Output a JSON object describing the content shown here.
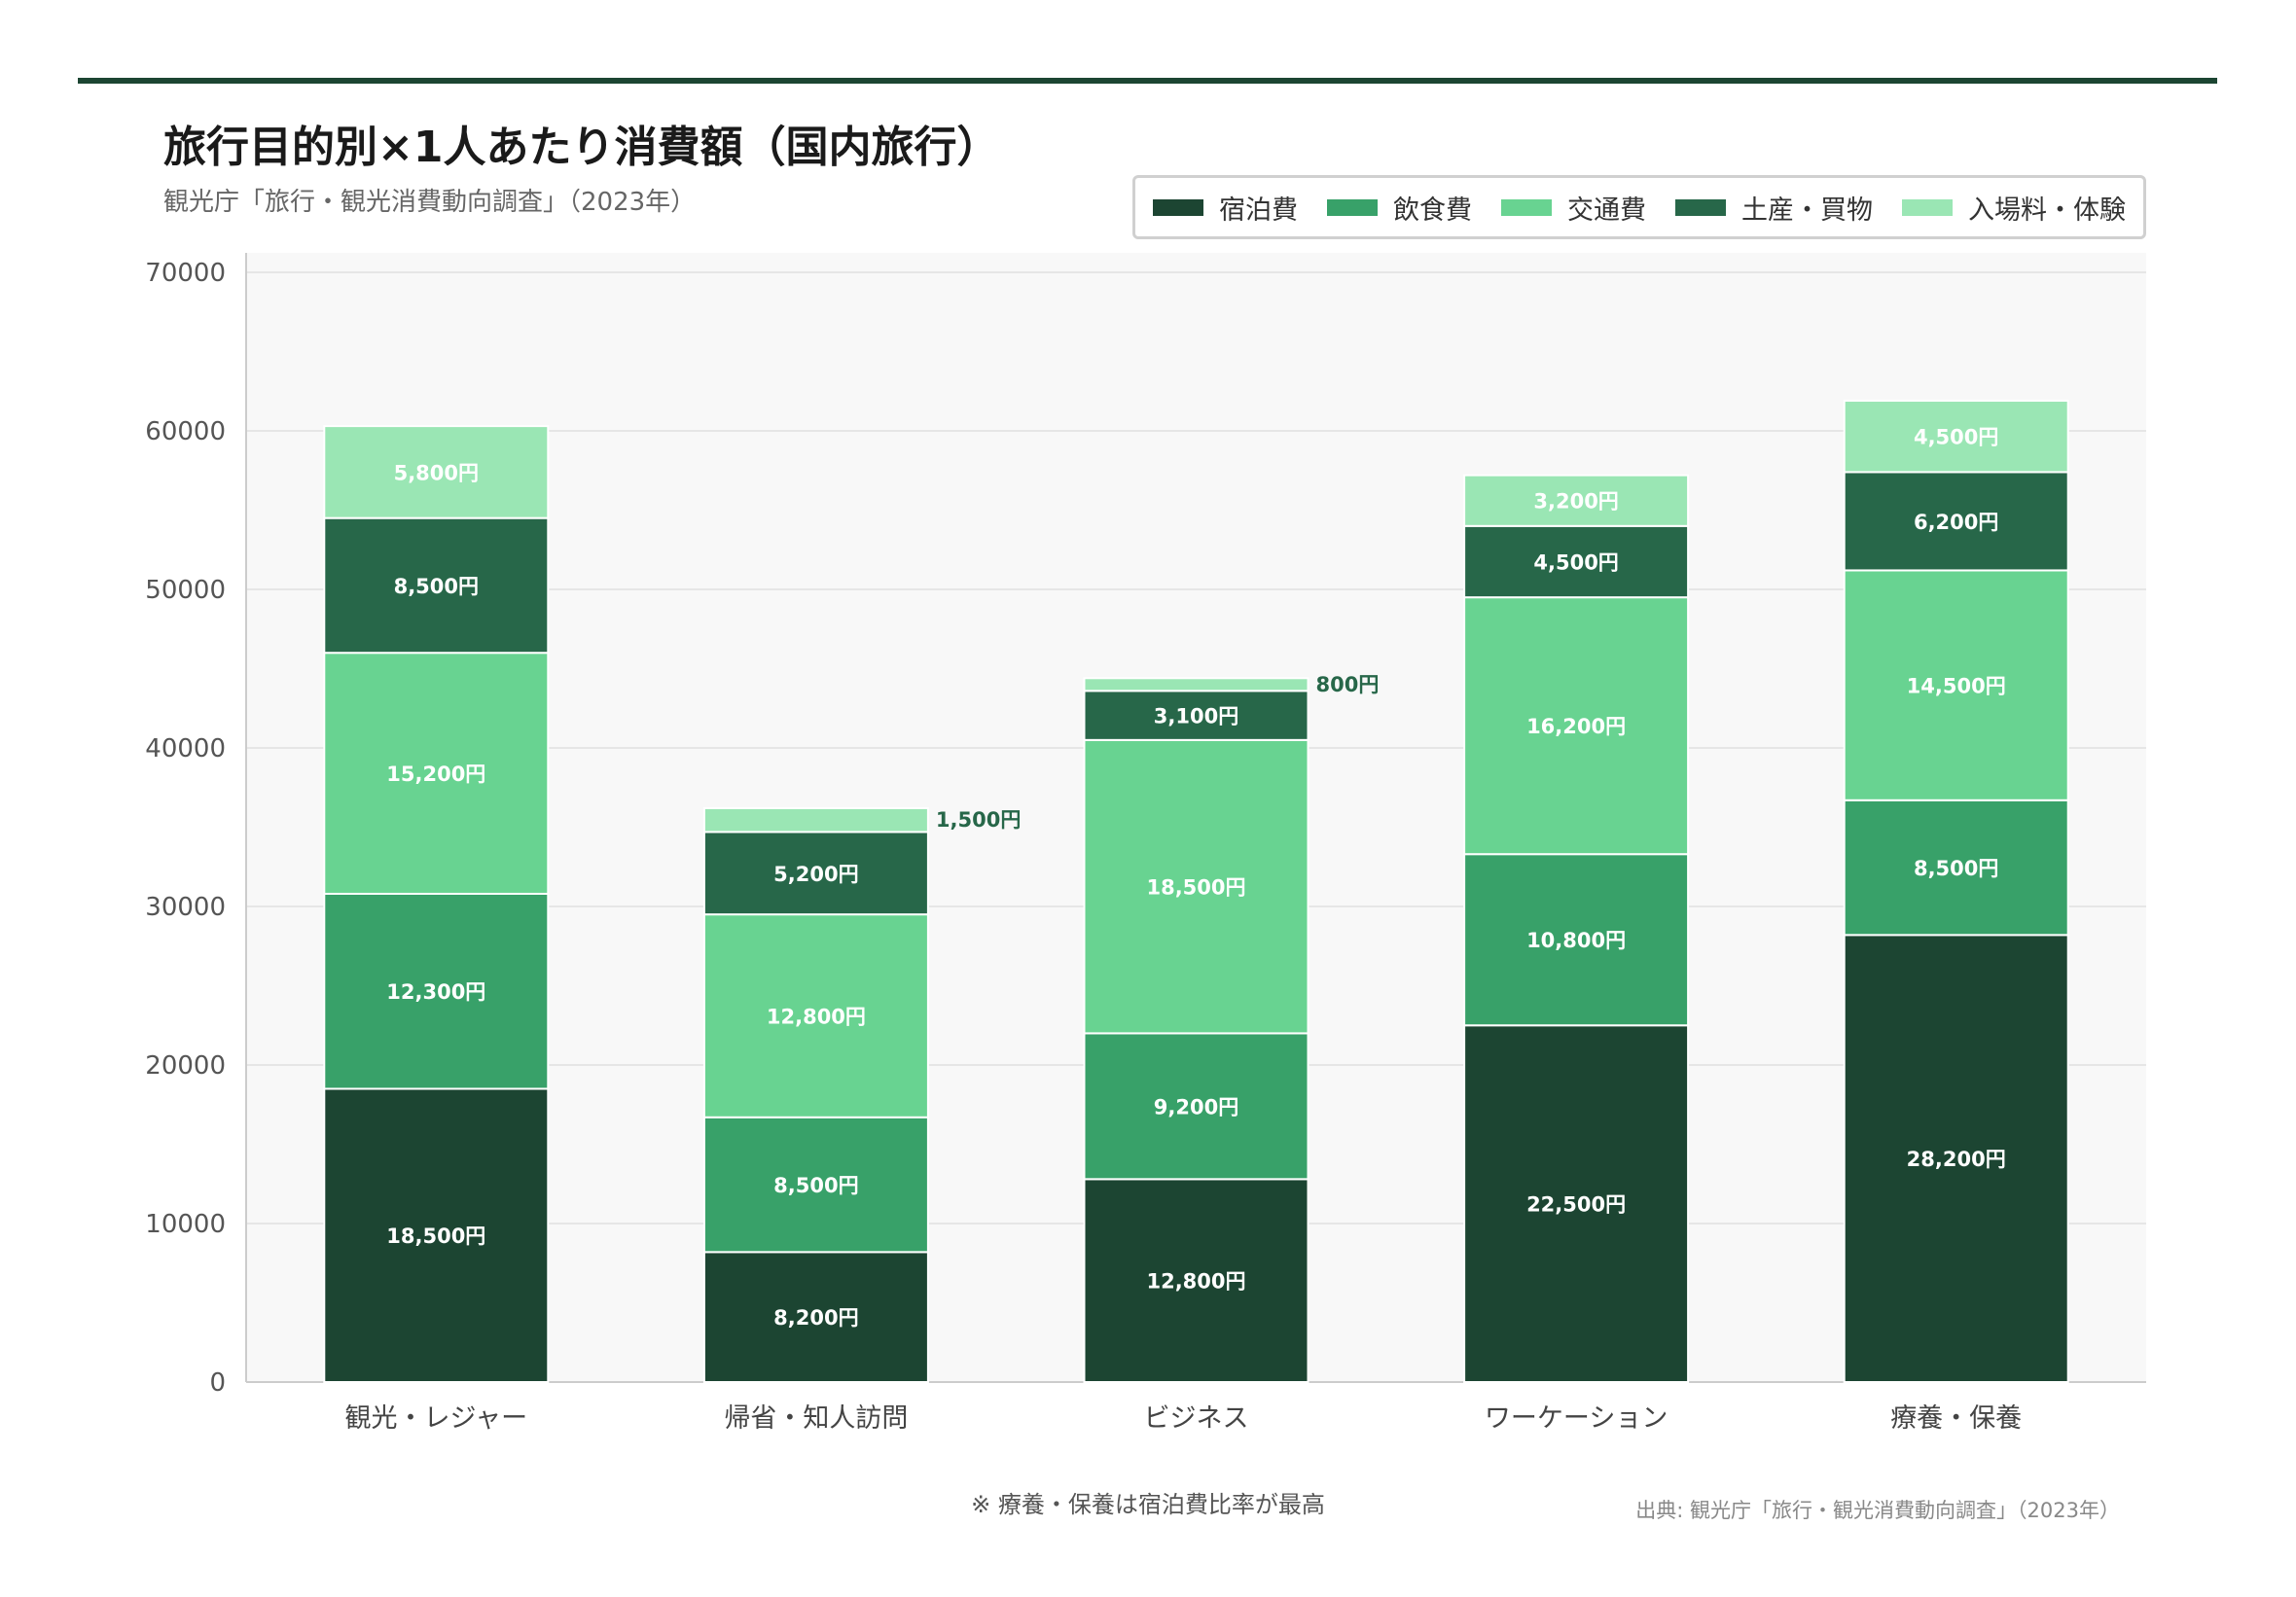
{
  "title": "旅行目的別×1人あたり消費額（国内旅行）",
  "subtitle": "観光庁「旅行・観光消費動向調査」（2023年）",
  "footnote": "※ 療養・保養は宿泊費比率が最高",
  "source": "出典: 観光庁「旅行・観光消費動向調査」（2023年）",
  "chart_data": {
    "type": "bar",
    "stacked": true,
    "categories": [
      "観光・レジャー",
      "帰省・知人訪問",
      "ビジネス",
      "ワーケーション",
      "療養・保養"
    ],
    "series": [
      {
        "name": "宿泊費",
        "color": "#1c4532",
        "values": [
          18500,
          8200,
          12800,
          22500,
          28200
        ]
      },
      {
        "name": "飲食費",
        "color": "#38a169",
        "values": [
          12300,
          8500,
          9200,
          10800,
          8500
        ]
      },
      {
        "name": "交通費",
        "color": "#68d391",
        "values": [
          15200,
          12800,
          18500,
          16200,
          14500
        ]
      },
      {
        "name": "土産・買物",
        "color": "#276749",
        "values": [
          8500,
          5200,
          3100,
          4500,
          6200
        ]
      },
      {
        "name": "入場料・体験",
        "color": "#9ae6b4",
        "values": [
          5800,
          1500,
          800,
          3200,
          4500
        ]
      }
    ],
    "data_label_suffix": "円",
    "ylim": [
      0,
      70000
    ],
    "yticks": [
      0,
      10000,
      20000,
      30000,
      40000,
      50000,
      60000,
      70000
    ],
    "grid": true,
    "legend_position": "top-right"
  }
}
